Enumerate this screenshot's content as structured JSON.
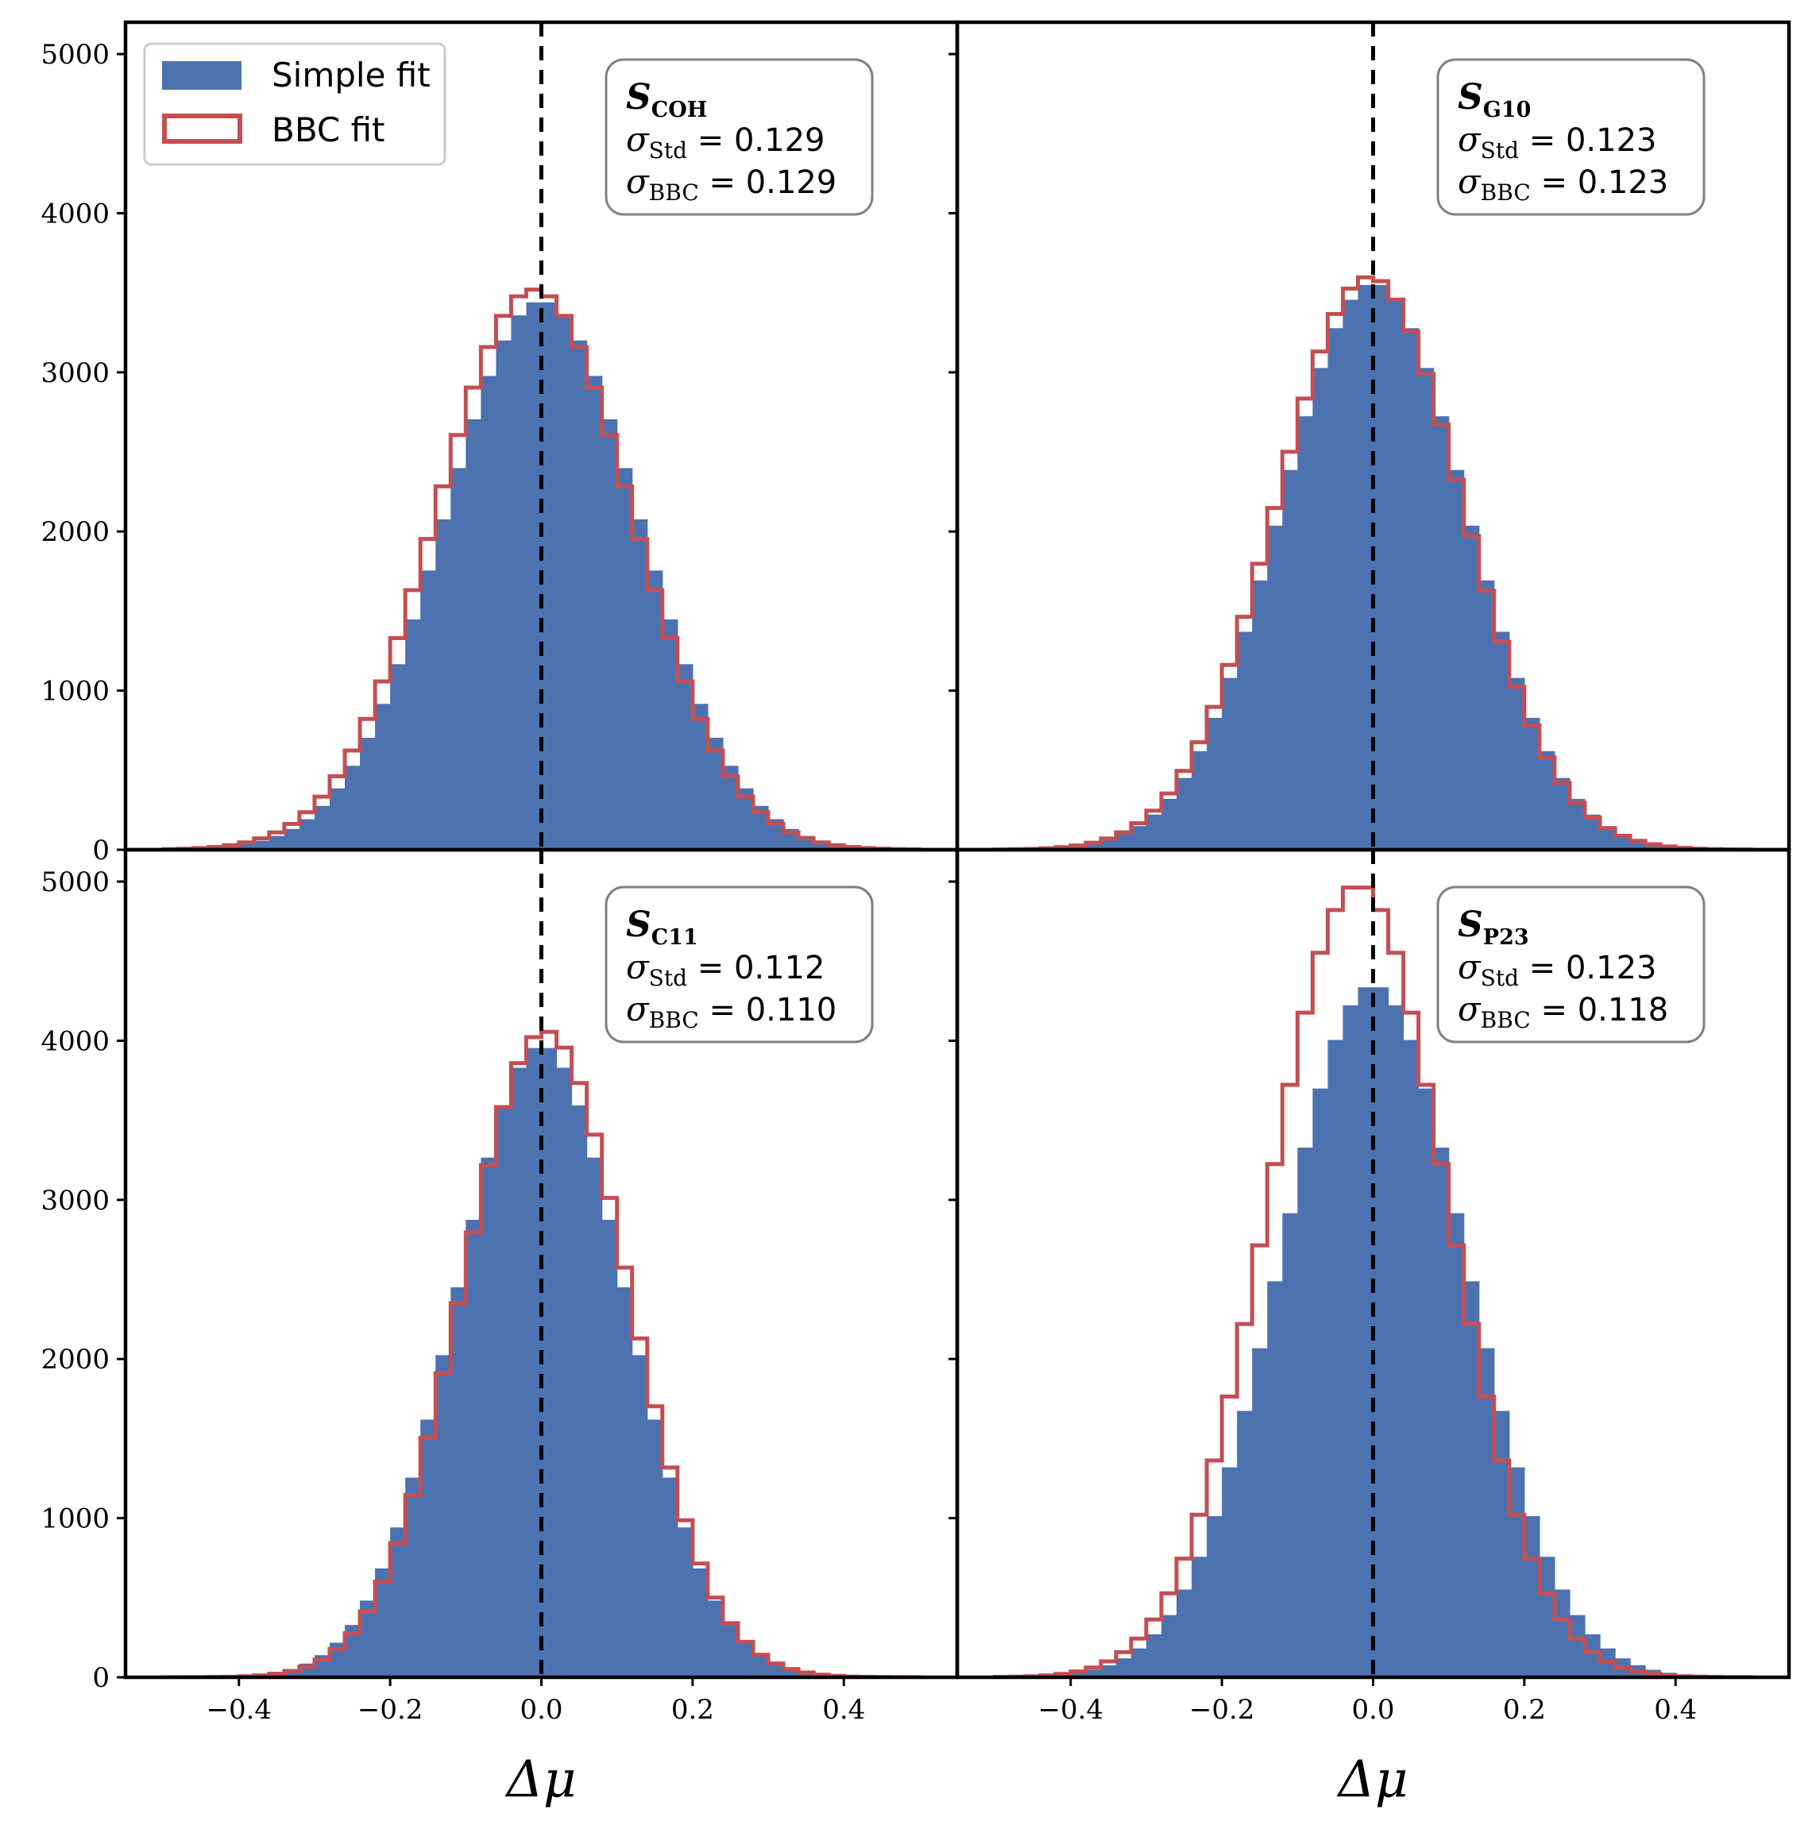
{
  "chart_data": {
    "type": "histogram",
    "layout": "2x2 shared axes",
    "xlabel": "Δμ",
    "ylabel": "",
    "xlim": [
      -0.55,
      0.55
    ],
    "ylim": [
      0,
      5200
    ],
    "x_ticks": [
      "−0.4",
      "−0.2",
      "0.0",
      "0.2",
      "0.4"
    ],
    "y_ticks_top": [
      "0",
      "1000",
      "2000",
      "3000",
      "4000",
      "5000"
    ],
    "y_ticks_bottom": [
      "0",
      "1000",
      "2000",
      "3000",
      "4000",
      "5000"
    ],
    "reference_line_x": 0.0,
    "legend": {
      "placement": "top-left",
      "entries": [
        {
          "label": "Simple fit",
          "style": "filled",
          "color": "#4c72b0"
        },
        {
          "label": "BBC fit",
          "style": "step",
          "color": "#c44e52"
        }
      ]
    },
    "panels": [
      {
        "id": "COH",
        "title_main": "S",
        "title_sub": "COH",
        "sigma_std_label": "Std",
        "sigma_std": "0.129",
        "sigma_bbc_label": "BBC",
        "sigma_bbc": "0.129",
        "simple_peak": 3450,
        "bbc_peak": 3520,
        "simple_width": 0.129,
        "bbc_width": 0.129,
        "bbc_shift": -0.01
      },
      {
        "id": "G10",
        "title_main": "S",
        "title_sub": "G10",
        "sigma_std_label": "Std",
        "sigma_std": "0.123",
        "sigma_bbc_label": "BBC",
        "sigma_bbc": "0.123",
        "simple_peak": 3560,
        "bbc_peak": 3600,
        "simple_width": 0.123,
        "bbc_width": 0.123,
        "bbc_shift": -0.005
      },
      {
        "id": "C11",
        "title_main": "S",
        "title_sub": "C11",
        "sigma_std_label": "Std",
        "sigma_std": "0.112",
        "sigma_bbc_label": "BBC",
        "sigma_bbc": "0.110",
        "simple_peak": 3970,
        "bbc_peak": 4060,
        "simple_width": 0.112,
        "bbc_width": 0.11,
        "bbc_shift": 0.005
      },
      {
        "id": "P23",
        "title_main": "S",
        "title_sub": "P23",
        "sigma_std_label": "Std",
        "sigma_std": "0.123",
        "sigma_bbc_label": "BBC",
        "sigma_bbc": "0.118",
        "simple_peak": 4350,
        "bbc_peak": 4980,
        "simple_width": 0.123,
        "bbc_width": 0.118,
        "bbc_shift": -0.02
      }
    ]
  }
}
